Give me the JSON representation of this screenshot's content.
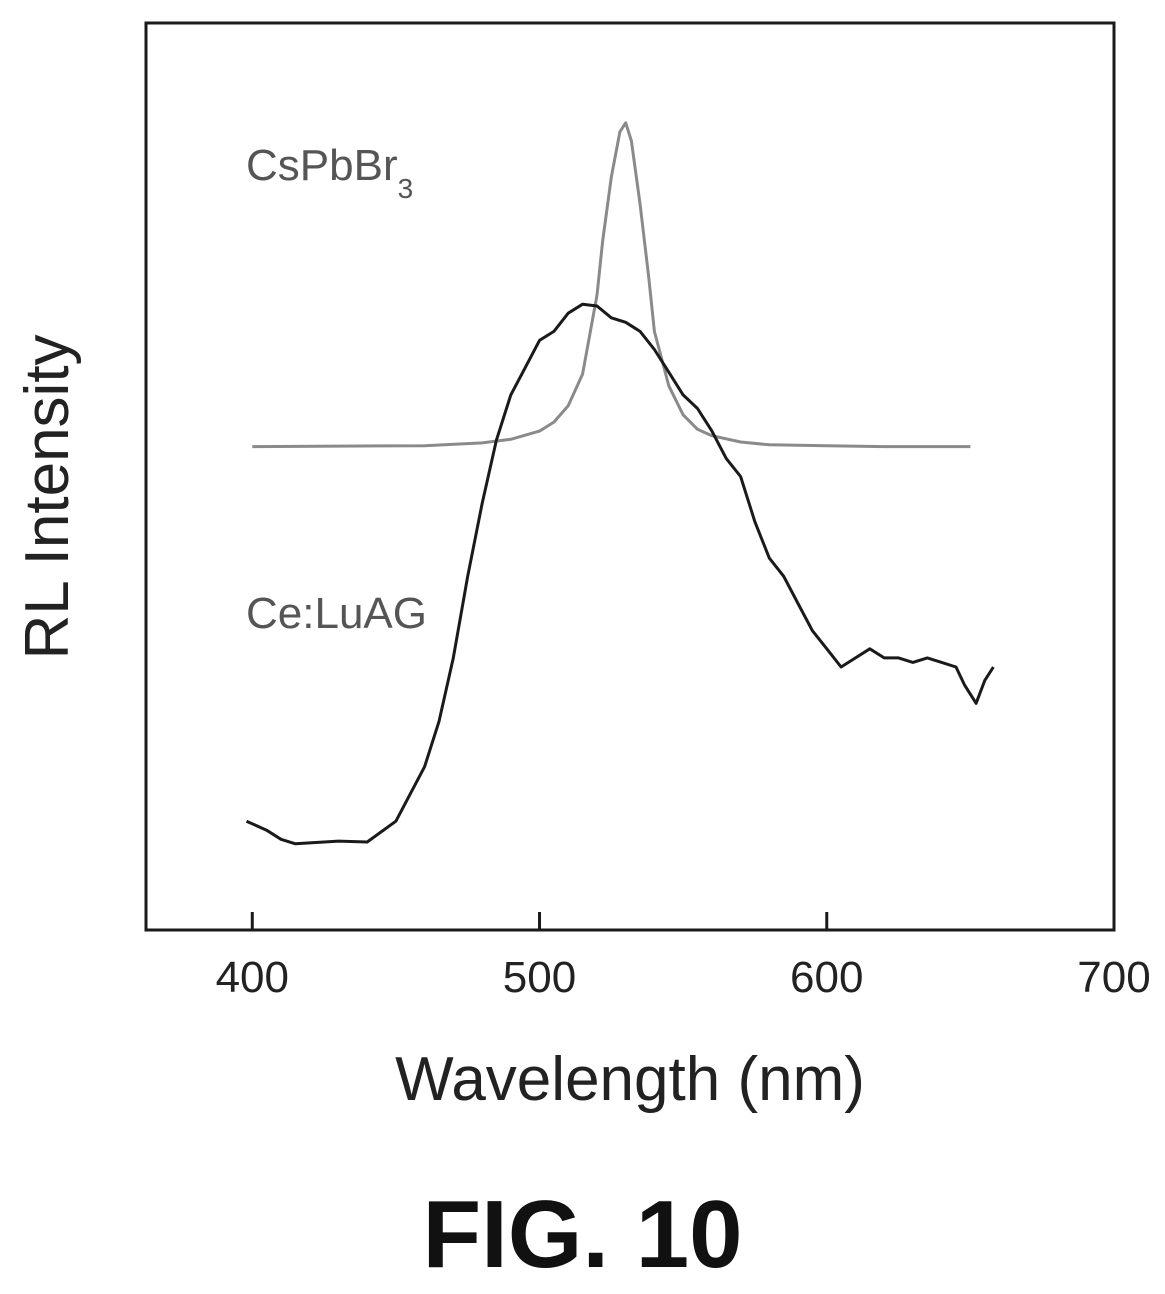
{
  "figure": {
    "caption": "FIG. 10"
  },
  "chart_data": {
    "type": "line",
    "xlabel": "Wavelength (nm)",
    "ylabel": "RL Intensity",
    "xlim": [
      363,
      700
    ],
    "ylim": [
      0,
      1
    ],
    "x_ticks": [
      400,
      500,
      600,
      700
    ],
    "y_ticks_shown": false,
    "grid": false,
    "legend": "none",
    "series": [
      {
        "name": "CsPbBr",
        "name_subscript": "3",
        "color": "#8a8a8a",
        "x": [
          400,
          460,
          480,
          490,
          500,
          505,
          510,
          515,
          520,
          522,
          525,
          528,
          530,
          532,
          535,
          538,
          540,
          545,
          550,
          555,
          560,
          570,
          580,
          600,
          620,
          650
        ],
        "y": [
          0.533,
          0.534,
          0.537,
          0.541,
          0.55,
          0.56,
          0.578,
          0.613,
          0.7,
          0.76,
          0.83,
          0.88,
          0.89,
          0.87,
          0.8,
          0.72,
          0.66,
          0.6,
          0.568,
          0.552,
          0.545,
          0.538,
          0.535,
          0.534,
          0.533,
          0.533
        ]
      },
      {
        "name": "Ce:LuAG",
        "color": "#1a1a1a",
        "x": [
          398,
          405,
          410,
          415,
          420,
          430,
          440,
          450,
          460,
          465,
          470,
          475,
          480,
          485,
          490,
          495,
          500,
          505,
          510,
          515,
          520,
          525,
          530,
          535,
          540,
          545,
          550,
          555,
          560,
          565,
          570,
          575,
          580,
          585,
          590,
          595,
          600,
          605,
          610,
          615,
          620,
          625,
          630,
          635,
          640,
          645,
          648,
          652,
          655,
          658
        ],
        "y": [
          0.12,
          0.11,
          0.1,
          0.095,
          0.096,
          0.098,
          0.097,
          0.12,
          0.18,
          0.23,
          0.3,
          0.39,
          0.47,
          0.54,
          0.59,
          0.62,
          0.65,
          0.66,
          0.68,
          0.69,
          0.688,
          0.675,
          0.67,
          0.66,
          0.64,
          0.615,
          0.59,
          0.575,
          0.55,
          0.52,
          0.5,
          0.45,
          0.41,
          0.39,
          0.36,
          0.33,
          0.31,
          0.29,
          0.3,
          0.31,
          0.3,
          0.3,
          0.295,
          0.3,
          0.295,
          0.29,
          0.27,
          0.25,
          0.275,
          0.29
        ]
      }
    ]
  }
}
